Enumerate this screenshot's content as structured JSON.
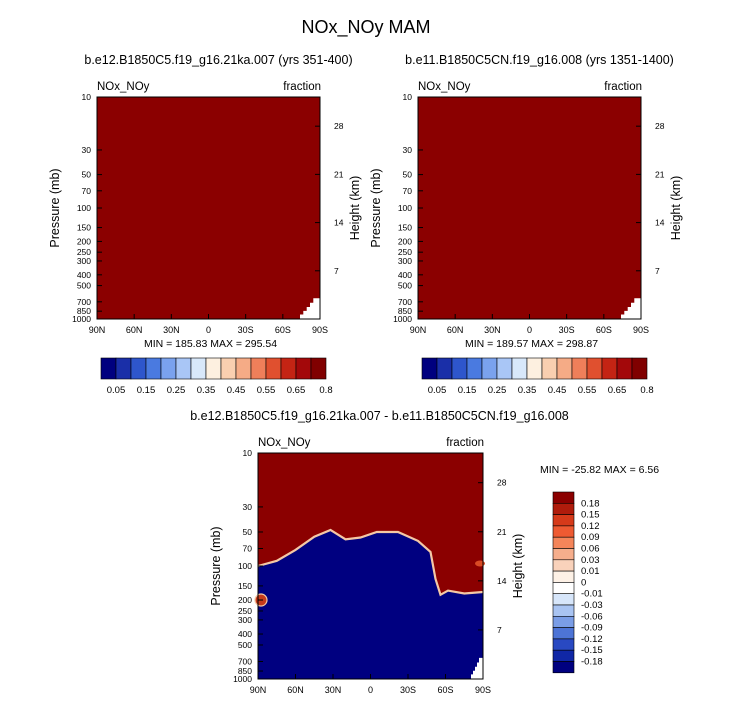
{
  "title": "NOx_NOy MAM",
  "colors": {
    "high": "#8b0000",
    "low": "#000080",
    "edge_light": "#f4c8a6",
    "white": "#ffffff"
  },
  "chart_data": [
    {
      "type": "heatmap",
      "title": "b.e12.B1850C5.f19_g16.21ka.007 (yrs 351-400)",
      "left_label": "NOx_NOy",
      "right_label": "fraction",
      "xlabel": "",
      "ylabel": "Pressure (mb)",
      "ylabel_right": "Height (km)",
      "x_ticks": [
        "90N",
        "60N",
        "30N",
        "0",
        "30S",
        "60S",
        "90S"
      ],
      "y_ticks": [
        "10",
        "30",
        "50",
        "70",
        "100",
        "150",
        "200",
        "250",
        "300",
        "400",
        "500",
        "700",
        "850",
        "1000"
      ],
      "y_ticks_right": [
        "28",
        "21",
        "14",
        "7"
      ],
      "y_scale": "log",
      "ylim": [
        1000,
        10
      ],
      "min_max": "MIN = 185.83  MAX = 295.54",
      "colorbar_labels": [
        "0.05",
        "0.15",
        "0.25",
        "0.35",
        "0.45",
        "0.55",
        "0.65",
        "0.8"
      ]
    },
    {
      "type": "heatmap",
      "title": "b.e11.B1850C5CN.f19_g16.008 (yrs 1351-1400)",
      "left_label": "NOx_NOy",
      "right_label": "fraction",
      "xlabel": "",
      "ylabel": "Pressure (mb)",
      "ylabel_right": "Height (km)",
      "x_ticks": [
        "90N",
        "60N",
        "30N",
        "0",
        "30S",
        "60S",
        "90S"
      ],
      "y_ticks": [
        "10",
        "30",
        "50",
        "70",
        "100",
        "150",
        "200",
        "250",
        "300",
        "400",
        "500",
        "700",
        "850",
        "1000"
      ],
      "y_ticks_right": [
        "28",
        "21",
        "14",
        "7"
      ],
      "y_scale": "log",
      "ylim": [
        1000,
        10
      ],
      "min_max": "MIN = 189.57  MAX = 298.87",
      "colorbar_labels": [
        "0.05",
        "0.15",
        "0.25",
        "0.35",
        "0.45",
        "0.55",
        "0.65",
        "0.8"
      ]
    },
    {
      "type": "heatmap",
      "title": "b.e12.B1850C5.f19_g16.21ka.007 - b.e11.B1850C5CN.f19_g16.008",
      "left_label": "NOx_NOy",
      "right_label": "fraction",
      "xlabel": "",
      "ylabel": "Pressure (mb)",
      "ylabel_right": "Height (km)",
      "x_ticks": [
        "90N",
        "60N",
        "30N",
        "0",
        "30S",
        "60S",
        "90S"
      ],
      "y_ticks": [
        "10",
        "30",
        "50",
        "70",
        "100",
        "150",
        "200",
        "250",
        "300",
        "400",
        "500",
        "700",
        "850",
        "1000"
      ],
      "y_ticks_right": [
        "28",
        "21",
        "14",
        "7"
      ],
      "y_scale": "log",
      "ylim": [
        1000,
        10
      ],
      "min_max": "MIN = -25.82  MAX =   6.56",
      "colorbar_labels": [
        "0.18",
        "0.15",
        "0.12",
        "0.09",
        "0.06",
        "0.03",
        "0.01",
        "0",
        "-0.01",
        "-0.03",
        "-0.06",
        "-0.09",
        "-0.12",
        "-0.15",
        "-0.18"
      ],
      "boundary_pressure_mb": [
        {
          "lat": 90,
          "p": 100
        },
        {
          "lat": 75,
          "p": 90
        },
        {
          "lat": 60,
          "p": 72
        },
        {
          "lat": 45,
          "p": 55
        },
        {
          "lat": 32,
          "p": 48
        },
        {
          "lat": 20,
          "p": 58
        },
        {
          "lat": 8,
          "p": 56
        },
        {
          "lat": -5,
          "p": 50
        },
        {
          "lat": -22,
          "p": 50
        },
        {
          "lat": -38,
          "p": 60
        },
        {
          "lat": -48,
          "p": 75
        },
        {
          "lat": -52,
          "p": 130
        },
        {
          "lat": -56,
          "p": 180
        },
        {
          "lat": -62,
          "p": 165
        },
        {
          "lat": -75,
          "p": 175
        },
        {
          "lat": -90,
          "p": 170
        }
      ]
    }
  ],
  "colorbar_top_colors": [
    "#00007f",
    "#1a2fa8",
    "#2e56cc",
    "#4a7ae0",
    "#7aa2ee",
    "#a9c6f6",
    "#d8e8fa",
    "#fdf0e0",
    "#f9cfb0",
    "#f5ab86",
    "#ef7f5a",
    "#e0502f",
    "#c42414",
    "#a3080a",
    "#800000"
  ],
  "colorbar_diff_colors": [
    "#8b0000",
    "#b01c0c",
    "#d63a1a",
    "#ee5a32",
    "#f4855a",
    "#f6ae8c",
    "#f9d2bb",
    "#fdf1e6",
    "#ffffff",
    "#d7e6fa",
    "#a9c4f2",
    "#7a9de6",
    "#4d74d6",
    "#2949c2",
    "#1027a6",
    "#000080"
  ]
}
